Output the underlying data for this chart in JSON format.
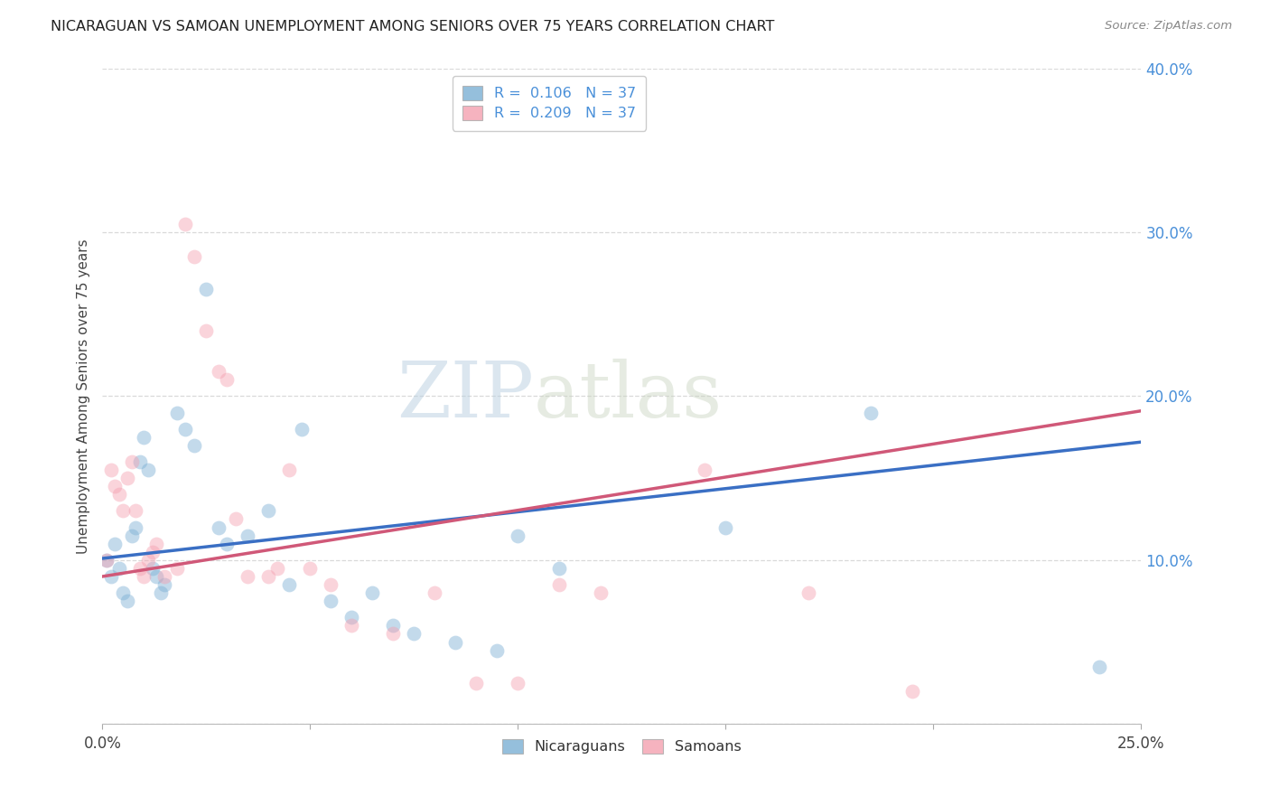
{
  "title": "NICARAGUAN VS SAMOAN UNEMPLOYMENT AMONG SENIORS OVER 75 YEARS CORRELATION CHART",
  "source": "Source: ZipAtlas.com",
  "ylabel": "Unemployment Among Seniors over 75 years",
  "xlim": [
    0.0,
    0.25
  ],
  "ylim": [
    0.0,
    0.4
  ],
  "xticks": [
    0.0,
    0.05,
    0.1,
    0.15,
    0.2,
    0.25
  ],
  "yticks": [
    0.0,
    0.1,
    0.2,
    0.3,
    0.4
  ],
  "nicaraguan_color": "#7bafd4",
  "samoan_color": "#f4a0b0",
  "line_nicaraguan_color": "#3a6fc4",
  "line_samoan_color": "#d05878",
  "R_nicaraguan": 0.106,
  "R_samoan": 0.209,
  "N_nicaraguan": 37,
  "N_samoan": 37,
  "nicaraguan_x": [
    0.001,
    0.002,
    0.003,
    0.004,
    0.005,
    0.006,
    0.007,
    0.008,
    0.009,
    0.01,
    0.011,
    0.012,
    0.013,
    0.014,
    0.015,
    0.018,
    0.02,
    0.022,
    0.025,
    0.028,
    0.03,
    0.035,
    0.04,
    0.045,
    0.048,
    0.055,
    0.06,
    0.065,
    0.07,
    0.075,
    0.085,
    0.095,
    0.1,
    0.11,
    0.15,
    0.185,
    0.24
  ],
  "nicaraguan_y": [
    0.1,
    0.09,
    0.11,
    0.095,
    0.08,
    0.075,
    0.115,
    0.12,
    0.16,
    0.175,
    0.155,
    0.095,
    0.09,
    0.08,
    0.085,
    0.19,
    0.18,
    0.17,
    0.265,
    0.12,
    0.11,
    0.115,
    0.13,
    0.085,
    0.18,
    0.075,
    0.065,
    0.08,
    0.06,
    0.055,
    0.05,
    0.045,
    0.115,
    0.095,
    0.12,
    0.19,
    0.035
  ],
  "samoan_x": [
    0.001,
    0.002,
    0.003,
    0.004,
    0.005,
    0.006,
    0.007,
    0.008,
    0.009,
    0.01,
    0.011,
    0.012,
    0.013,
    0.015,
    0.018,
    0.02,
    0.022,
    0.025,
    0.028,
    0.03,
    0.032,
    0.035,
    0.04,
    0.042,
    0.045,
    0.05,
    0.055,
    0.06,
    0.07,
    0.08,
    0.09,
    0.1,
    0.11,
    0.12,
    0.145,
    0.17,
    0.195
  ],
  "samoan_y": [
    0.1,
    0.155,
    0.145,
    0.14,
    0.13,
    0.15,
    0.16,
    0.13,
    0.095,
    0.09,
    0.1,
    0.105,
    0.11,
    0.09,
    0.095,
    0.305,
    0.285,
    0.24,
    0.215,
    0.21,
    0.125,
    0.09,
    0.09,
    0.095,
    0.155,
    0.095,
    0.085,
    0.06,
    0.055,
    0.08,
    0.025,
    0.025,
    0.085,
    0.08,
    0.155,
    0.08,
    0.02
  ],
  "watermark_zip": "ZIP",
  "watermark_atlas": "atlas",
  "background_color": "#ffffff",
  "grid_color": "#d0d0d0",
  "marker_size": 130,
  "marker_alpha": 0.45,
  "line_width": 2.5
}
